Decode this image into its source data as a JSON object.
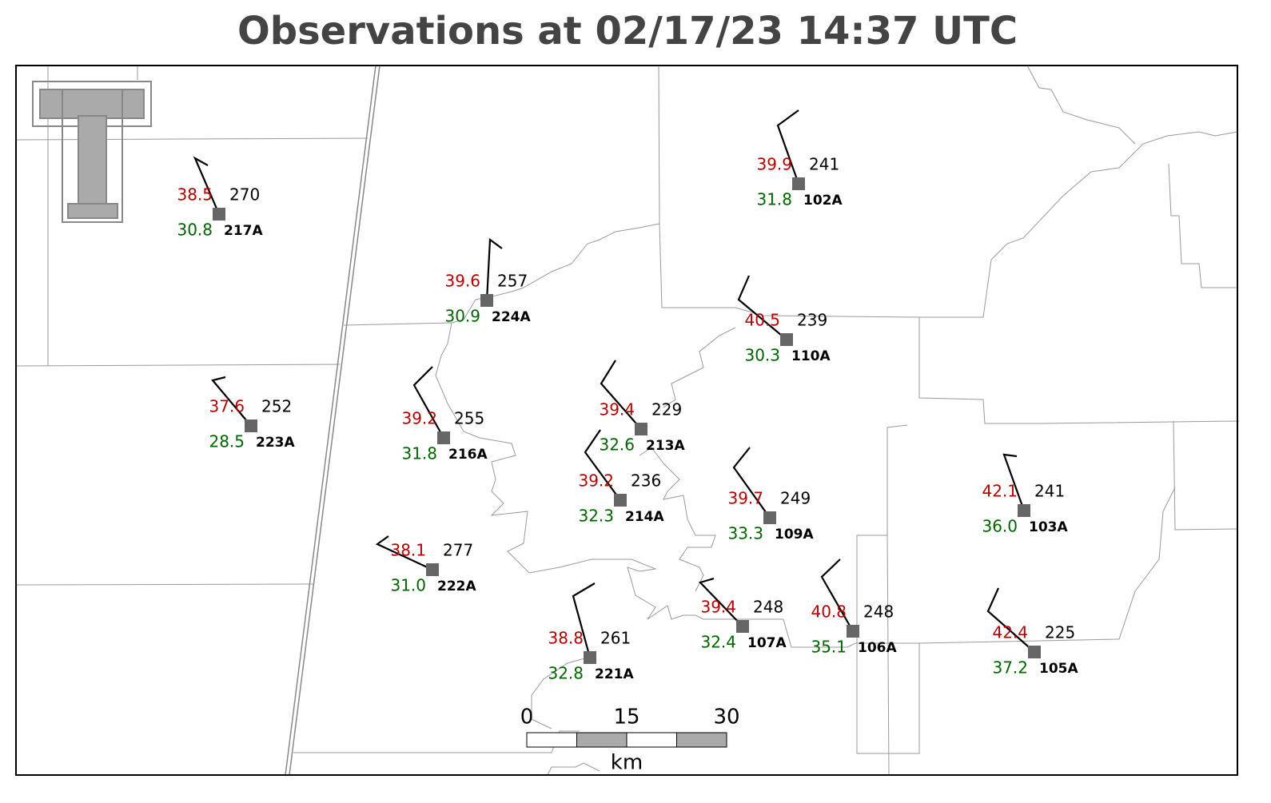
{
  "title": "Observations at 02/17/23 14:37 UTC",
  "stations": [
    {
      "id": "217A",
      "temperature": "38.5",
      "dewpoint": "30.8",
      "value": 270
    },
    {
      "id": "224A",
      "temperature": "39.6",
      "dewpoint": "30.9",
      "value": 257
    },
    {
      "id": "223A",
      "temperature": "37.6",
      "dewpoint": "28.5",
      "value": 252
    },
    {
      "id": "216A",
      "temperature": "39.2",
      "dewpoint": "31.8",
      "value": 255
    },
    {
      "id": "213A",
      "temperature": "39.4",
      "dewpoint": "32.6",
      "value": 229
    },
    {
      "id": "214A",
      "temperature": "39.2",
      "dewpoint": "32.3",
      "value": 236
    },
    {
      "id": "222A",
      "temperature": "38.1",
      "dewpoint": "31.0",
      "value": 277
    },
    {
      "id": "221A",
      "temperature": "38.8",
      "dewpoint": "32.8",
      "value": 261
    },
    {
      "id": "107A",
      "temperature": "39.4",
      "dewpoint": "32.4",
      "value": 248
    },
    {
      "id": "106A",
      "temperature": "40.8",
      "dewpoint": "35.1",
      "value": 248
    },
    {
      "id": "105A",
      "temperature": "42.4",
      "dewpoint": "37.2",
      "value": 225
    },
    {
      "id": "103A",
      "temperature": "42.1",
      "dewpoint": "36.0",
      "value": 241
    },
    {
      "id": "109A",
      "temperature": "39.7",
      "dewpoint": "33.3",
      "value": 249
    },
    {
      "id": "110A",
      "temperature": "40.5",
      "dewpoint": "30.3",
      "value": 239
    },
    {
      "id": "102A",
      "temperature": "39.9",
      "dewpoint": "31.8",
      "value": 241
    }
  ],
  "scale_bar": {
    "ticks": [
      0,
      15,
      30
    ],
    "unit": "km"
  }
}
